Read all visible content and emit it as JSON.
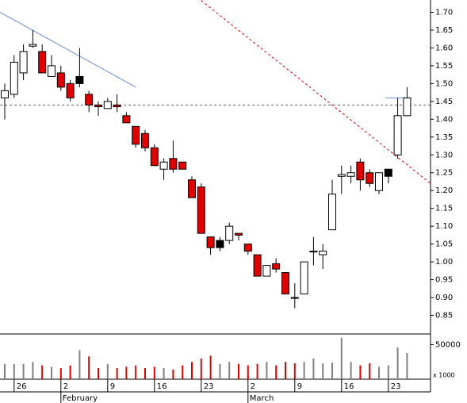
{
  "chart_data": {
    "type": "candlestick",
    "categories": [
      null,
      "26",
      null,
      null,
      null,
      null,
      "2",
      null,
      null,
      null,
      null,
      "9",
      null,
      null,
      null,
      null,
      "16",
      null,
      null,
      null,
      null,
      "23",
      null,
      null,
      null,
      null,
      "2",
      null,
      null,
      null,
      null,
      "9",
      null,
      null,
      null,
      null,
      "16",
      null,
      null,
      null,
      null,
      "23",
      null,
      null
    ],
    "months": [
      null,
      null,
      null,
      null,
      null,
      null,
      "February",
      null,
      null,
      null,
      null,
      null,
      null,
      null,
      null,
      null,
      null,
      null,
      null,
      null,
      null,
      null,
      null,
      null,
      null,
      null,
      "March",
      null,
      null,
      null,
      null,
      null,
      null,
      null,
      null,
      null,
      null,
      null,
      null,
      null,
      null,
      null,
      null,
      null
    ],
    "open": [
      1.46,
      1.47,
      1.53,
      1.605,
      1.59,
      1.52,
      1.53,
      1.5,
      1.52,
      1.47,
      1.44,
      1.43,
      1.44,
      1.41,
      1.38,
      1.36,
      1.32,
      1.26,
      1.29,
      1.28,
      1.23,
      1.21,
      1.07,
      1.06,
      1.06,
      1.08,
      1.05,
      1.02,
      0.96,
      0.995,
      0.97,
      0.9,
      0.91,
      1.03,
      1.02,
      1.09,
      1.24,
      1.24,
      1.28,
      1.25,
      1.2,
      1.26,
      1.3,
      1.41
    ],
    "high": [
      1.5,
      1.58,
      1.61,
      1.65,
      1.61,
      1.58,
      1.55,
      1.51,
      1.6,
      1.48,
      1.45,
      1.46,
      1.47,
      1.42,
      1.38,
      1.37,
      1.33,
      1.29,
      1.34,
      1.28,
      1.24,
      1.22,
      1.07,
      1.07,
      1.11,
      1.08,
      1.05,
      1.02,
      0.99,
      1.01,
      0.97,
      0.94,
      1.0,
      1.07,
      1.05,
      1.23,
      1.27,
      1.27,
      1.29,
      1.26,
      1.25,
      1.26,
      1.46,
      1.49
    ],
    "low": [
      1.4,
      1.46,
      1.51,
      1.6,
      1.53,
      1.52,
      1.48,
      1.45,
      1.49,
      1.42,
      1.41,
      1.43,
      1.42,
      1.39,
      1.32,
      1.31,
      1.27,
      1.23,
      1.25,
      1.26,
      1.18,
      1.08,
      1.02,
      1.03,
      1.05,
      1.06,
      1.02,
      0.96,
      0.96,
      0.97,
      0.91,
      0.87,
      0.91,
      0.99,
      0.98,
      1.09,
      1.19,
      1.22,
      1.2,
      1.21,
      1.19,
      1.22,
      1.29,
      1.41
    ],
    "close": [
      1.48,
      1.56,
      1.59,
      1.61,
      1.53,
      1.55,
      1.49,
      1.46,
      1.5,
      1.44,
      1.435,
      1.45,
      1.435,
      1.39,
      1.33,
      1.32,
      1.27,
      1.28,
      1.26,
      1.26,
      1.18,
      1.08,
      1.04,
      1.04,
      1.1,
      1.075,
      1.03,
      0.96,
      0.99,
      0.98,
      0.91,
      0.9,
      1.0,
      1.03,
      1.03,
      1.19,
      1.245,
      1.25,
      1.23,
      1.22,
      1.25,
      1.24,
      1.41,
      1.46
    ],
    "colors": [
      "#ffffff",
      "#ffffff",
      "#ffffff",
      "#ffffff",
      "#e00000",
      "#ffffff",
      "#e00000",
      "#e00000",
      "#000000",
      "#e00000",
      "#e00000",
      "#ffffff",
      "#e00000",
      "#e00000",
      "#e00000",
      "#e00000",
      "#e00000",
      "#ffffff",
      "#e00000",
      "#e00000",
      "#e00000",
      "#e00000",
      "#e00000",
      "#000000",
      "#ffffff",
      "#e00000",
      "#e00000",
      "#e00000",
      "#ffffff",
      "#e00000",
      "#e00000",
      "#e00000",
      "#ffffff",
      "#ffffff",
      "#ffffff",
      "#ffffff",
      "#ffffff",
      "#ffffff",
      "#e00000",
      "#e00000",
      "#ffffff",
      "#000000",
      "#ffffff",
      "#ffffff"
    ],
    "ylim": [
      0.8,
      1.73
    ],
    "yticks": [
      {
        "value": 0.85,
        "label": "0.85"
      },
      {
        "value": 0.9,
        "label": "0.90"
      },
      {
        "value": 0.95,
        "label": "0.95"
      },
      {
        "value": 1.0,
        "label": "1.00"
      },
      {
        "value": 1.05,
        "label": "1.05"
      },
      {
        "value": 1.1,
        "label": "1.10"
      },
      {
        "value": 1.15,
        "label": "1.15"
      },
      {
        "value": 1.2,
        "label": "1.20"
      },
      {
        "value": 1.25,
        "label": "1.25"
      },
      {
        "value": 1.3,
        "label": "1.30"
      },
      {
        "value": 1.35,
        "label": "1.35"
      },
      {
        "value": 1.4,
        "label": "1.40"
      },
      {
        "value": 1.45,
        "label": "1.45"
      },
      {
        "value": 1.5,
        "label": "1.50"
      },
      {
        "value": 1.55,
        "label": "1.55"
      },
      {
        "value": 1.6,
        "label": "1.60"
      },
      {
        "value": 1.65,
        "label": "1.65"
      },
      {
        "value": 1.7,
        "label": "1.70"
      }
    ],
    "lines": [
      {
        "x": [
          -0.5,
          14
        ],
        "values": [
          1.7,
          1.49
        ],
        "color": "#6a8fd0",
        "dashed": false
      },
      {
        "x": [
          21,
          45.5
        ],
        "values": [
          1.733,
          1.22
        ],
        "color": "#e00000",
        "dashed": true
      },
      {
        "x": [
          -0.5,
          45.5
        ],
        "values": [
          1.44,
          1.44
        ],
        "color": "#606060",
        "dashed": true
      },
      {
        "x": [
          40.7,
          43.5
        ],
        "values": [
          1.46,
          1.46
        ],
        "color": "#6a8fd0",
        "dashed": false
      }
    ],
    "volume": [
      22000,
      22000,
      22000,
      25000,
      20000,
      18000,
      16000,
      20000,
      42000,
      33000,
      16000,
      22000,
      16000,
      18000,
      20000,
      16000,
      18000,
      16000,
      14000,
      20000,
      25000,
      30000,
      34000,
      22000,
      25000,
      22000,
      20000,
      22000,
      25000,
      20000,
      25000,
      23000,
      25000,
      30000,
      23000,
      24000,
      60000,
      25000,
      20000,
      23000,
      18000,
      20000,
      46000,
      38000
    ],
    "volume_colors": [
      "#808080",
      "#808080",
      "#808080",
      "#808080",
      "#e00000",
      "#808080",
      "#e00000",
      "#e00000",
      "#808080",
      "#e00000",
      "#e00000",
      "#808080",
      "#e00000",
      "#e00000",
      "#e00000",
      "#e00000",
      "#e00000",
      "#808080",
      "#e00000",
      "#e00000",
      "#e00000",
      "#e00000",
      "#e00000",
      "#808080",
      "#808080",
      "#e00000",
      "#e00000",
      "#e00000",
      "#808080",
      "#e00000",
      "#e00000",
      "#e00000",
      "#808080",
      "#808080",
      "#808080",
      "#808080",
      "#808080",
      "#808080",
      "#e00000",
      "#e00000",
      "#808080",
      "#808080",
      "#808080",
      "#808080"
    ],
    "volume_ylim": [
      0,
      62000
    ],
    "volume_yticks": [
      50000
    ],
    "volume_unit": "x 1000"
  }
}
